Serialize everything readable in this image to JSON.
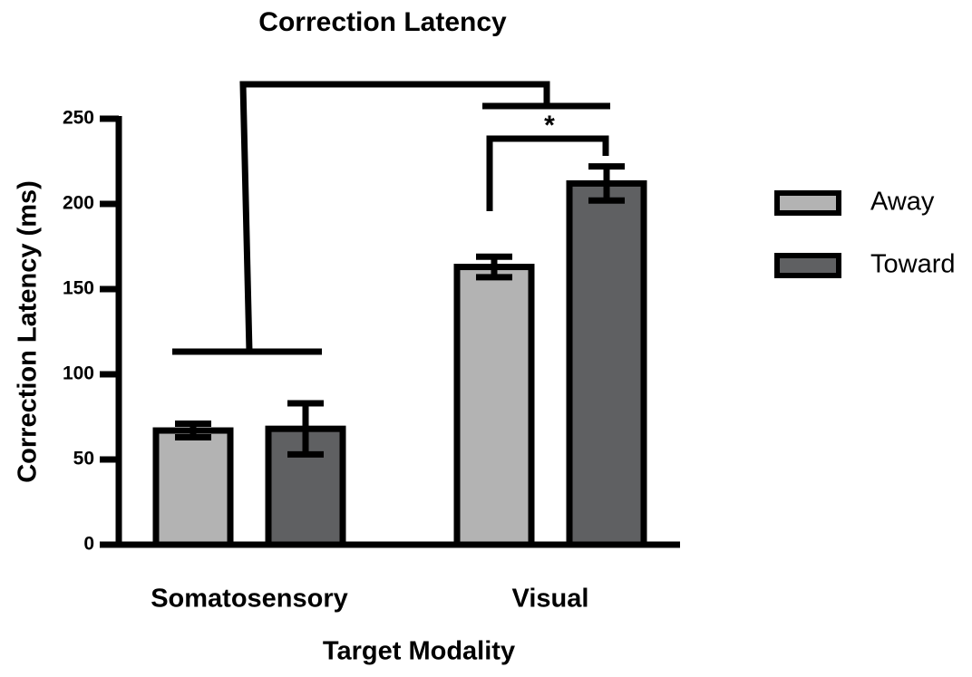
{
  "chart_data": {
    "type": "bar",
    "title": "Correction Latency",
    "xlabel": "Target Modality",
    "ylabel": "Correction Latency (ms)",
    "categories": [
      "Somatosensory",
      "Visual"
    ],
    "series": [
      {
        "name": "Away",
        "color": "#b3b3b3",
        "values": [
          67,
          163
        ],
        "errors": [
          4,
          6
        ]
      },
      {
        "name": "Toward",
        "color": "#5f6062",
        "values": [
          68,
          212
        ],
        "errors": [
          15,
          10
        ]
      }
    ],
    "ylim": [
      0,
      250
    ],
    "yticks": [
      0,
      50,
      100,
      150,
      200,
      250
    ],
    "annotations": [
      "*"
    ],
    "legend": "right"
  }
}
